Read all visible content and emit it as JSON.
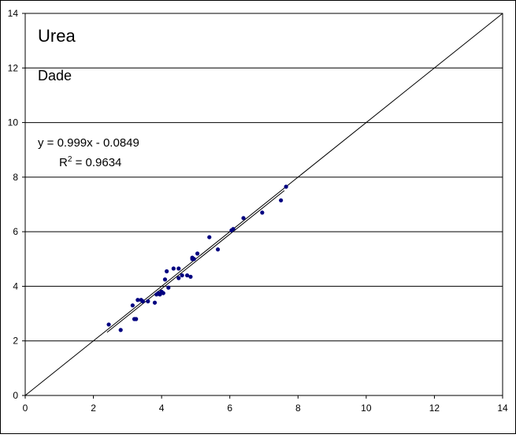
{
  "chart_data": {
    "type": "scatter",
    "title": "Urea",
    "subtitle": "Dade",
    "xlabel": "",
    "ylabel": "",
    "xlim": [
      0,
      14
    ],
    "ylim": [
      0,
      14
    ],
    "x_ticks": [
      0,
      2,
      4,
      6,
      8,
      10,
      12,
      14
    ],
    "y_ticks": [
      0,
      2,
      4,
      6,
      8,
      10,
      12,
      14
    ],
    "grid": "horizontal",
    "legend": "none",
    "colors": {
      "points": "#000080",
      "lines": "#000000",
      "grid": "#000000"
    },
    "trendline": {
      "slope": 0.999,
      "intercept": -0.0849,
      "equation_label": "y = 0.999x - 0.0849",
      "r2_prefix": "R",
      "r2_exponent": "2",
      "r2_value": " = 0.9634",
      "x_range": [
        2.4,
        7.6
      ]
    },
    "identity_line": {
      "x_range": [
        0,
        14
      ]
    },
    "points": {
      "x": [
        2.45,
        2.8,
        3.15,
        3.2,
        3.25,
        3.3,
        3.4,
        3.45,
        3.6,
        3.8,
        3.85,
        3.9,
        3.95,
        4.0,
        4.05,
        4.1,
        4.15,
        4.2,
        4.35,
        4.5,
        4.5,
        4.6,
        4.75,
        4.85,
        4.9,
        4.9,
        4.95,
        5.05,
        5.4,
        5.65,
        6.05,
        6.1,
        6.4,
        6.95,
        7.5,
        7.65
      ],
      "y": [
        2.6,
        2.4,
        3.3,
        2.8,
        2.8,
        3.5,
        3.5,
        3.45,
        3.45,
        3.4,
        3.7,
        3.75,
        3.7,
        3.8,
        3.75,
        4.25,
        4.55,
        3.95,
        4.65,
        4.3,
        4.65,
        4.4,
        4.4,
        4.35,
        5.0,
        5.05,
        5.0,
        5.2,
        5.8,
        5.35,
        6.05,
        6.1,
        6.5,
        6.7,
        7.15,
        7.65
      ]
    }
  }
}
